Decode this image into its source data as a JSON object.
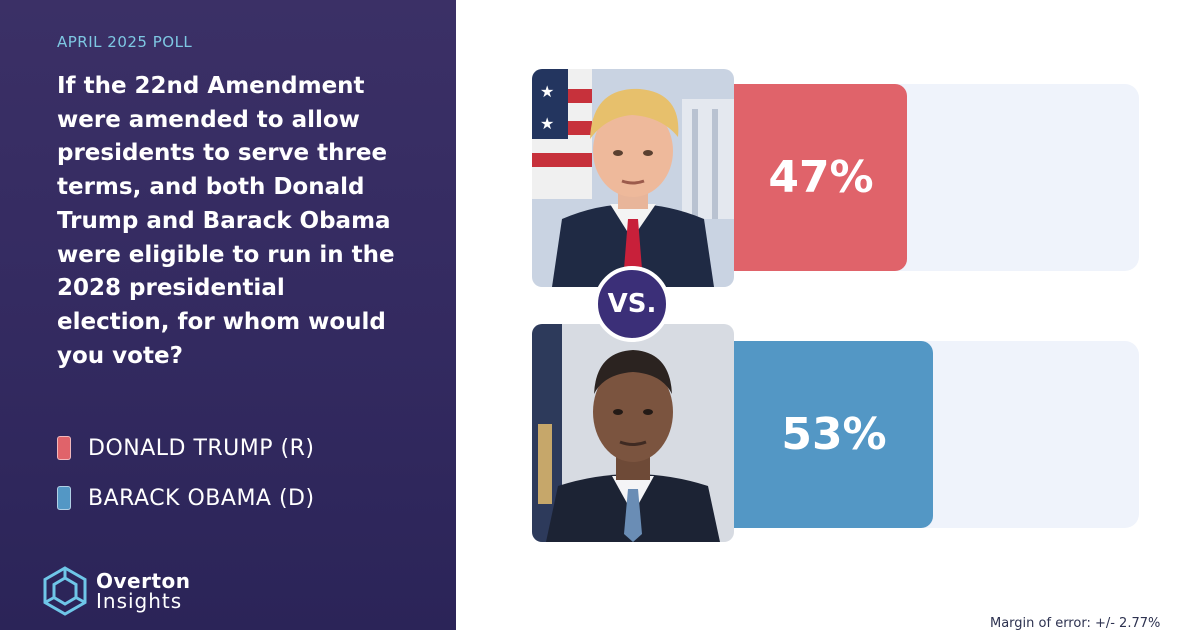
{
  "poll_label": "APRIL 2025 POLL",
  "question": "If the 22nd Amendment were amended to allow presidents to serve three terms, and both Donald Trump and Barack Obama were eligible to run in the 2028 presidential election, for whom would you vote?",
  "legend": [
    {
      "label": "DONALD TRUMP (R)",
      "color": "#e0636a"
    },
    {
      "label": "BARACK OBAMA (D)",
      "color": "#5397c5"
    }
  ],
  "vs_label": "VS.",
  "brand": {
    "line1": "Overton",
    "line2": "Insights"
  },
  "footnote": "Margin of error: +/- 2.77%",
  "chart_data": {
    "type": "bar",
    "orientation": "horizontal",
    "categories": [
      "DONALD TRUMP (R)",
      "BARACK OBAMA (D)"
    ],
    "values": [
      47,
      53
    ],
    "value_labels": [
      "47%",
      "53%"
    ],
    "colors": [
      "#e0636a",
      "#5397c5"
    ],
    "xlim": [
      0,
      100
    ],
    "grid": false,
    "legend": "left"
  }
}
